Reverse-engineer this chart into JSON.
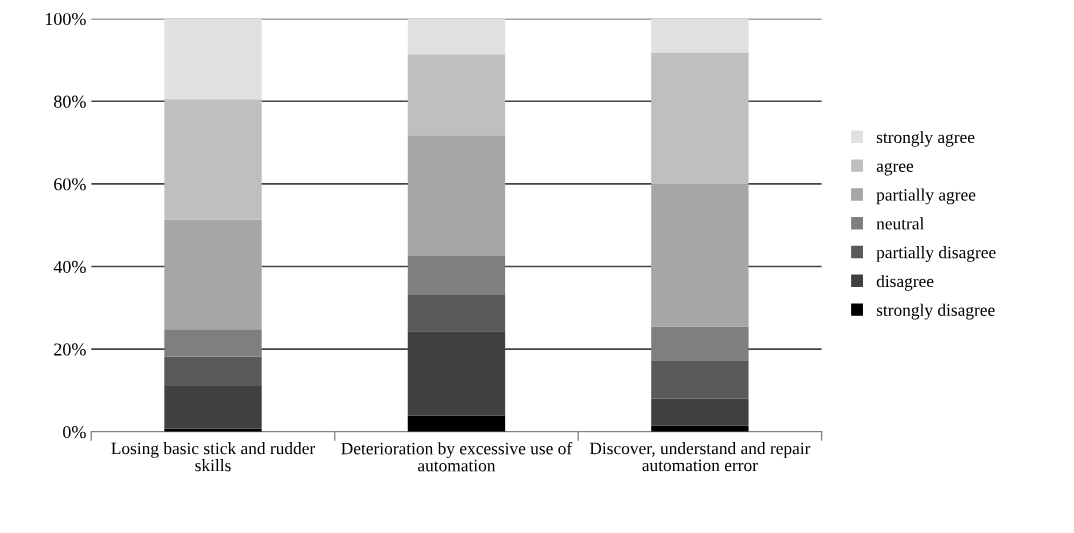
{
  "chart_data": {
    "type": "bar",
    "stacked": true,
    "categories": [
      "Losing basic stick and rudder skills",
      "Deterioration by excessive use of automation",
      "Discover, understand and repair automation error"
    ],
    "series": [
      {
        "name": "strongly disagree",
        "color": "#000000",
        "values": [
          0.8,
          3.9,
          1.5
        ]
      },
      {
        "name": "disagree",
        "color": "#404040",
        "values": [
          10.3,
          20.4,
          6.5
        ]
      },
      {
        "name": "partially disagree",
        "color": "#595959",
        "values": [
          7.1,
          9.0,
          9.3
        ]
      },
      {
        "name": "neutral",
        "color": "#7f7f7f",
        "values": [
          6.6,
          9.4,
          8.2
        ]
      },
      {
        "name": "partially agree",
        "color": "#a6a6a6",
        "values": [
          26.6,
          29.1,
          34.4
        ]
      },
      {
        "name": "agree",
        "color": "#bfbfbf",
        "values": [
          29.1,
          19.6,
          31.9
        ]
      },
      {
        "name": "strongly agree",
        "color": "#e0e0e0",
        "values": [
          19.5,
          8.6,
          8.2
        ]
      }
    ],
    "ylim": [
      0,
      100
    ],
    "yticks": [
      {
        "value": 0,
        "label": "0%"
      },
      {
        "value": 20,
        "label": "20%"
      },
      {
        "value": 40,
        "label": "40%"
      },
      {
        "value": 60,
        "label": "60%"
      },
      {
        "value": 80,
        "label": "80%"
      },
      {
        "value": 100,
        "label": "100%"
      }
    ],
    "grid": "y",
    "legend": "right"
  }
}
